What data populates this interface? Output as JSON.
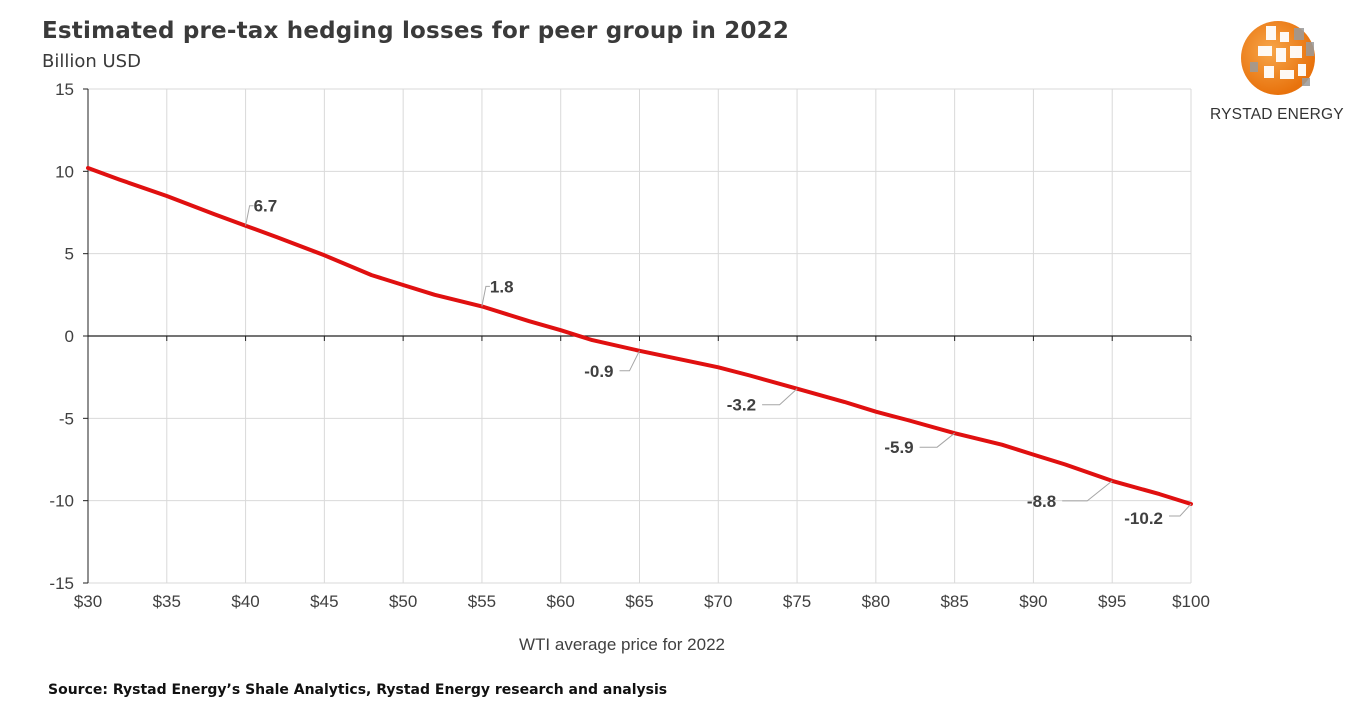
{
  "title": "Estimated pre-tax hedging losses for peer group in 2022",
  "subtitle": "Billion USD",
  "source": "Source: Rystad Energy’s Shale Analytics,  Rystad Energy research and analysis",
  "logo": {
    "icon": "rystad-globe-logo",
    "text": "RYSTAD ENERGY"
  },
  "colors": {
    "line": "#e01010",
    "grid": "#d9d9d9",
    "axis": "#222222",
    "label_text": "#404040"
  },
  "chart_data": {
    "type": "line",
    "title": "Estimated pre-tax hedging losses for peer group in 2022",
    "subtitle": "Billion USD",
    "xlabel": "WTI average price for 2022",
    "ylabel": "",
    "xlim": [
      30,
      100
    ],
    "ylim": [
      -15,
      15
    ],
    "x_ticks": [
      30,
      35,
      40,
      45,
      50,
      55,
      60,
      65,
      70,
      75,
      80,
      85,
      90,
      95,
      100
    ],
    "x_tick_labels": [
      "$30",
      "$35",
      "$40",
      "$45",
      "$50",
      "$55",
      "$60",
      "$65",
      "$70",
      "$75",
      "$80",
      "$85",
      "$90",
      "$95",
      "$100"
    ],
    "y_ticks": [
      15,
      10,
      5,
      0,
      -5,
      -10,
      -15
    ],
    "y_tick_labels": [
      "15",
      "10",
      "5",
      "0",
      "-5",
      "-10",
      "-15"
    ],
    "grid": true,
    "series": [
      {
        "x": [
          30,
          32,
          35,
          38,
          40,
          42,
          45,
          48,
          50,
          52,
          55,
          58,
          60,
          62,
          65,
          68,
          70,
          72,
          75,
          78,
          80,
          82,
          85,
          88,
          90,
          92,
          95,
          98,
          100
        ],
        "y": [
          10.2,
          9.5,
          8.5,
          7.4,
          6.7,
          6.0,
          4.9,
          3.7,
          3.1,
          2.5,
          1.8,
          0.9,
          0.35,
          -0.25,
          -0.9,
          -1.5,
          -1.9,
          -2.4,
          -3.2,
          -4.0,
          -4.6,
          -5.1,
          -5.9,
          -6.6,
          -7.2,
          -7.8,
          -8.8,
          -9.6,
          -10.2
        ]
      }
    ],
    "data_labels": [
      {
        "x": 40,
        "y": 6.7,
        "text": "6.7"
      },
      {
        "x": 55,
        "y": 1.8,
        "text": "1.8"
      },
      {
        "x": 65,
        "y": -0.9,
        "text": "-0.9"
      },
      {
        "x": 75,
        "y": -3.2,
        "text": "-3.2"
      },
      {
        "x": 85,
        "y": -5.9,
        "text": "-5.9"
      },
      {
        "x": 95,
        "y": -8.8,
        "text": "-8.8"
      },
      {
        "x": 100,
        "y": -10.2,
        "text": "-10.2"
      }
    ]
  }
}
